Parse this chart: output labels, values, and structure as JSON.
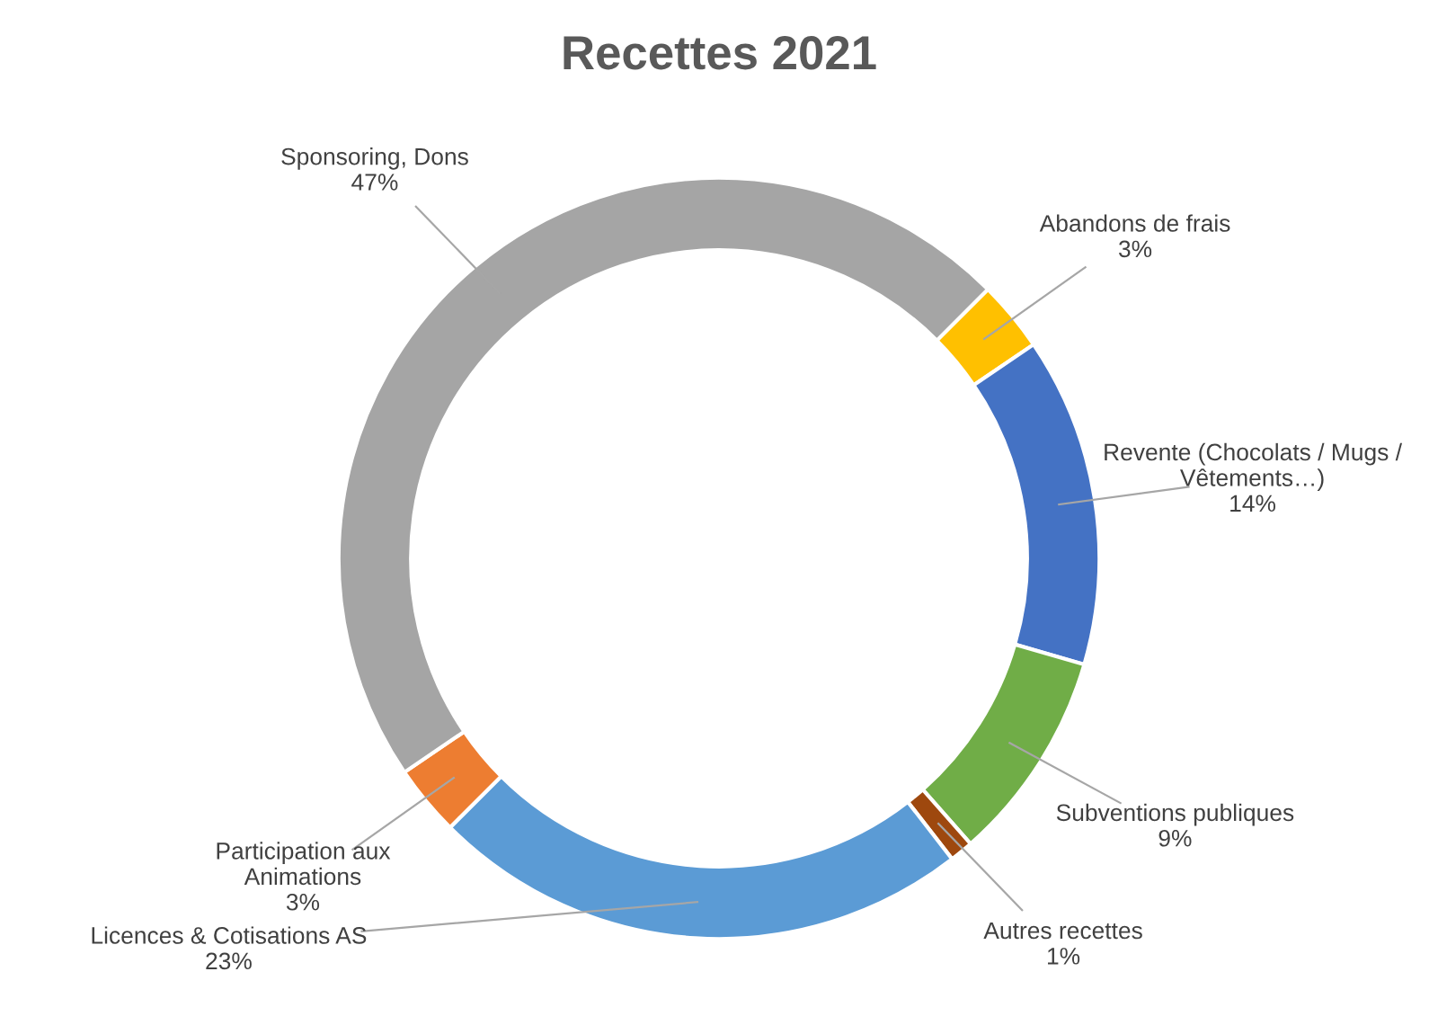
{
  "chart_data": {
    "type": "donut",
    "title": "Recettes 2021",
    "categories": [
      "Abandons de frais",
      "Revente (Chocolats / Mugs /\nVêtements…)",
      "Subventions publiques",
      "Autres recettes",
      "Licences & Cotisations AS",
      "Participation aux\nAnimations",
      "Sponsoring, Dons"
    ],
    "values": [
      3,
      14,
      9,
      1,
      23,
      3,
      47
    ],
    "value_labels": [
      "3%",
      "14%",
      "9%",
      "1%",
      "23%",
      "3%",
      "47%"
    ],
    "colors": [
      "#ffc000",
      "#4472c4",
      "#70ad47",
      "#9e480e",
      "#5b9bd5",
      "#ed7d31",
      "#a5a5a5"
    ],
    "legend": false
  }
}
